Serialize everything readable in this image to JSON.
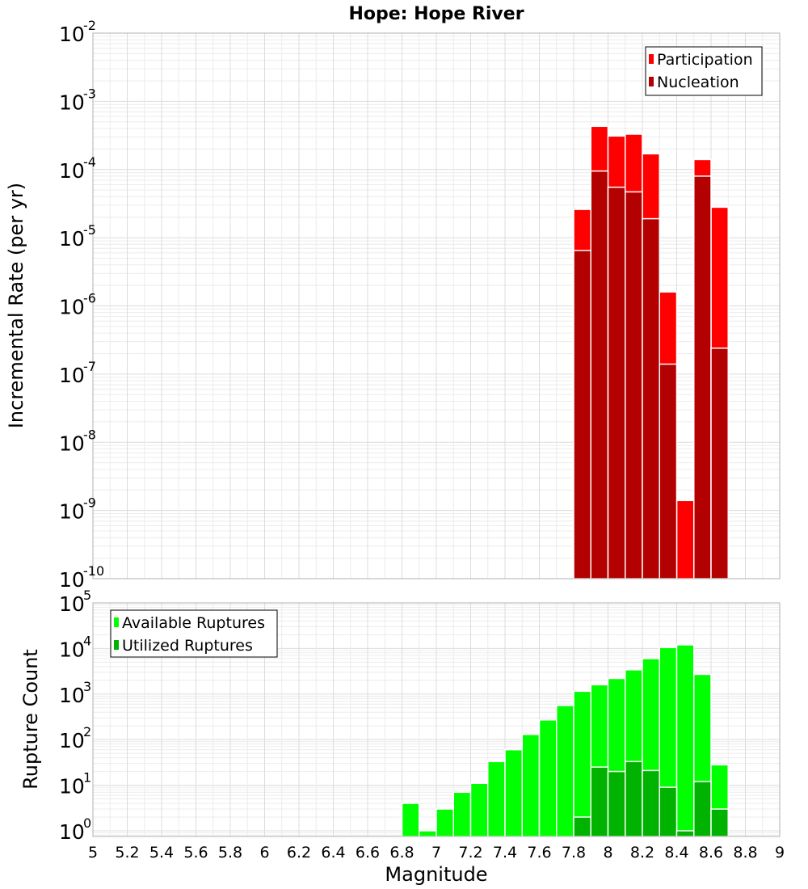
{
  "chart_data": [
    {
      "type": "bar",
      "title": "Hope: Hope River",
      "xlabel": "",
      "ylabel": "Incremental Rate (per yr)",
      "yscale": "log",
      "ylim": [
        1e-10,
        0.01
      ],
      "xlim": [
        5,
        9
      ],
      "bin_width": 0.1,
      "grid": true,
      "legend_position": "top-right",
      "x": [
        7.85,
        7.95,
        8.05,
        8.15,
        8.25,
        8.35,
        8.45,
        8.55,
        8.65
      ],
      "series": [
        {
          "name": "Participation",
          "color": "#ff0000",
          "values": [
            2.6e-05,
            0.00043,
            0.00031,
            0.00033,
            0.00017,
            1.6e-06,
            1.4e-09,
            0.00014,
            2.8e-05
          ]
        },
        {
          "name": "Nucleation",
          "color": "#b30000",
          "values": [
            6.5e-06,
            9.5e-05,
            5.5e-05,
            4.7e-05,
            1.9e-05,
            1.4e-07,
            null,
            8e-05,
            2.4e-07
          ]
        }
      ]
    },
    {
      "type": "bar",
      "title": "",
      "xlabel": "Magnitude",
      "ylabel": "Rupture Count",
      "yscale": "log",
      "ylim": [
        0.75,
        100000
      ],
      "xlim": [
        5,
        9
      ],
      "bin_width": 0.1,
      "grid": true,
      "legend_position": "top-left",
      "x_ticks": [
        "5",
        "5.2",
        "5.4",
        "5.6",
        "5.8",
        "6",
        "6.2",
        "6.4",
        "6.6",
        "6.8",
        "7",
        "7.2",
        "7.4",
        "7.6",
        "7.8",
        "8",
        "8.2",
        "8.4",
        "8.6",
        "8.8",
        "9"
      ],
      "x": [
        6.85,
        6.95,
        7.05,
        7.15,
        7.25,
        7.35,
        7.45,
        7.55,
        7.65,
        7.75,
        7.85,
        7.95,
        8.05,
        8.15,
        8.25,
        8.35,
        8.45,
        8.55,
        8.65
      ],
      "series": [
        {
          "name": "Available Ruptures",
          "color": "#00ff00",
          "values": [
            4,
            1,
            3,
            7,
            11,
            33,
            60,
            130,
            270,
            560,
            1150,
            1600,
            2200,
            3400,
            6000,
            10500,
            12000,
            2700,
            28
          ]
        },
        {
          "name": "Utilized Ruptures",
          "color": "#00b300",
          "values": [
            null,
            null,
            null,
            null,
            null,
            null,
            null,
            null,
            null,
            null,
            2,
            25,
            20,
            33,
            21,
            9,
            1,
            12,
            3
          ]
        }
      ]
    }
  ]
}
